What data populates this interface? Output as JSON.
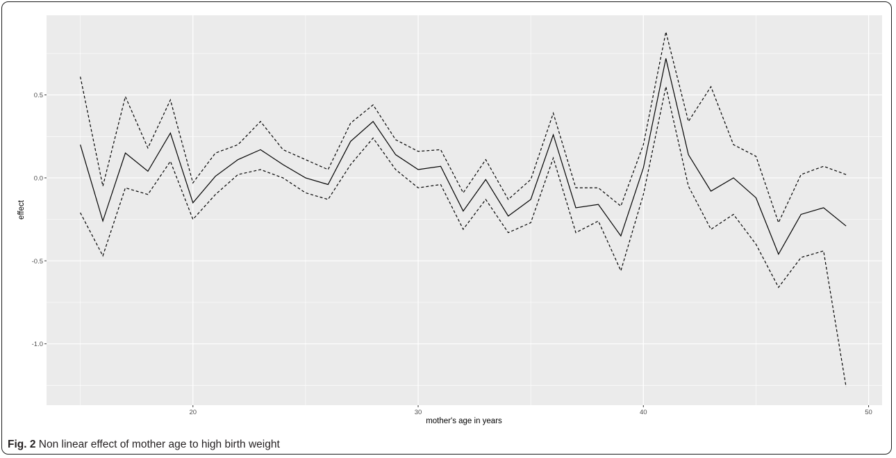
{
  "caption": {
    "label": "Fig. 2",
    "text": "Non linear effect of mother age to high birth weight"
  },
  "colors": {
    "panel_background": "#ebebeb",
    "gridline_major": "#ffffff",
    "line": "#000000"
  },
  "chart_data": {
    "type": "line",
    "title": "",
    "xlabel": "mother's age in years",
    "ylabel": "effect",
    "xlim": [
      13.5,
      50.6
    ],
    "ylim": [
      -1.37,
      0.98
    ],
    "xticks": [
      20,
      30,
      40,
      50
    ],
    "yticks": [
      -1.0,
      -0.5,
      0.0,
      0.5
    ],
    "xtick_labels": [
      "20",
      "30",
      "40",
      "50"
    ],
    "ytick_labels": [
      "-1.0",
      "-0.5",
      "0.0",
      "0.5"
    ],
    "grid": true,
    "legend": "none",
    "x": [
      15,
      16,
      17,
      18,
      19,
      20,
      21,
      22,
      23,
      24,
      25,
      26,
      27,
      28,
      29,
      30,
      31,
      32,
      33,
      34,
      35,
      36,
      37,
      38,
      39,
      40,
      41,
      42,
      43,
      44,
      45,
      46,
      47,
      48,
      49
    ],
    "series": [
      {
        "style": "solid",
        "values": [
          0.2,
          -0.26,
          0.15,
          0.04,
          0.27,
          -0.15,
          0.01,
          0.11,
          0.17,
          0.08,
          0.0,
          -0.04,
          0.22,
          0.34,
          0.14,
          0.05,
          0.07,
          -0.2,
          -0.01,
          -0.23,
          -0.13,
          0.26,
          -0.18,
          -0.16,
          -0.35,
          0.06,
          0.72,
          0.14,
          -0.08,
          0.0,
          -0.12,
          -0.46,
          -0.22,
          -0.18,
          -0.29
        ]
      },
      {
        "style": "dashed",
        "values": [
          0.61,
          -0.05,
          0.49,
          0.18,
          0.47,
          -0.03,
          0.15,
          0.2,
          0.34,
          0.17,
          0.11,
          0.05,
          0.33,
          0.44,
          0.23,
          0.16,
          0.17,
          -0.09,
          0.11,
          -0.13,
          -0.01,
          0.39,
          -0.06,
          -0.06,
          -0.17,
          0.2,
          0.88,
          0.34,
          0.55,
          0.2,
          0.13,
          -0.27,
          0.02,
          0.07,
          0.02
        ]
      },
      {
        "style": "dashed",
        "values": [
          -0.21,
          -0.47,
          -0.06,
          -0.1,
          0.1,
          -0.25,
          -0.1,
          0.02,
          0.05,
          0.0,
          -0.09,
          -0.13,
          0.08,
          0.24,
          0.05,
          -0.06,
          -0.04,
          -0.31,
          -0.13,
          -0.33,
          -0.27,
          0.12,
          -0.33,
          -0.26,
          -0.56,
          -0.1,
          0.55,
          -0.05,
          -0.31,
          -0.22,
          -0.4,
          -0.66,
          -0.48,
          -0.44,
          -1.26
        ]
      }
    ]
  }
}
